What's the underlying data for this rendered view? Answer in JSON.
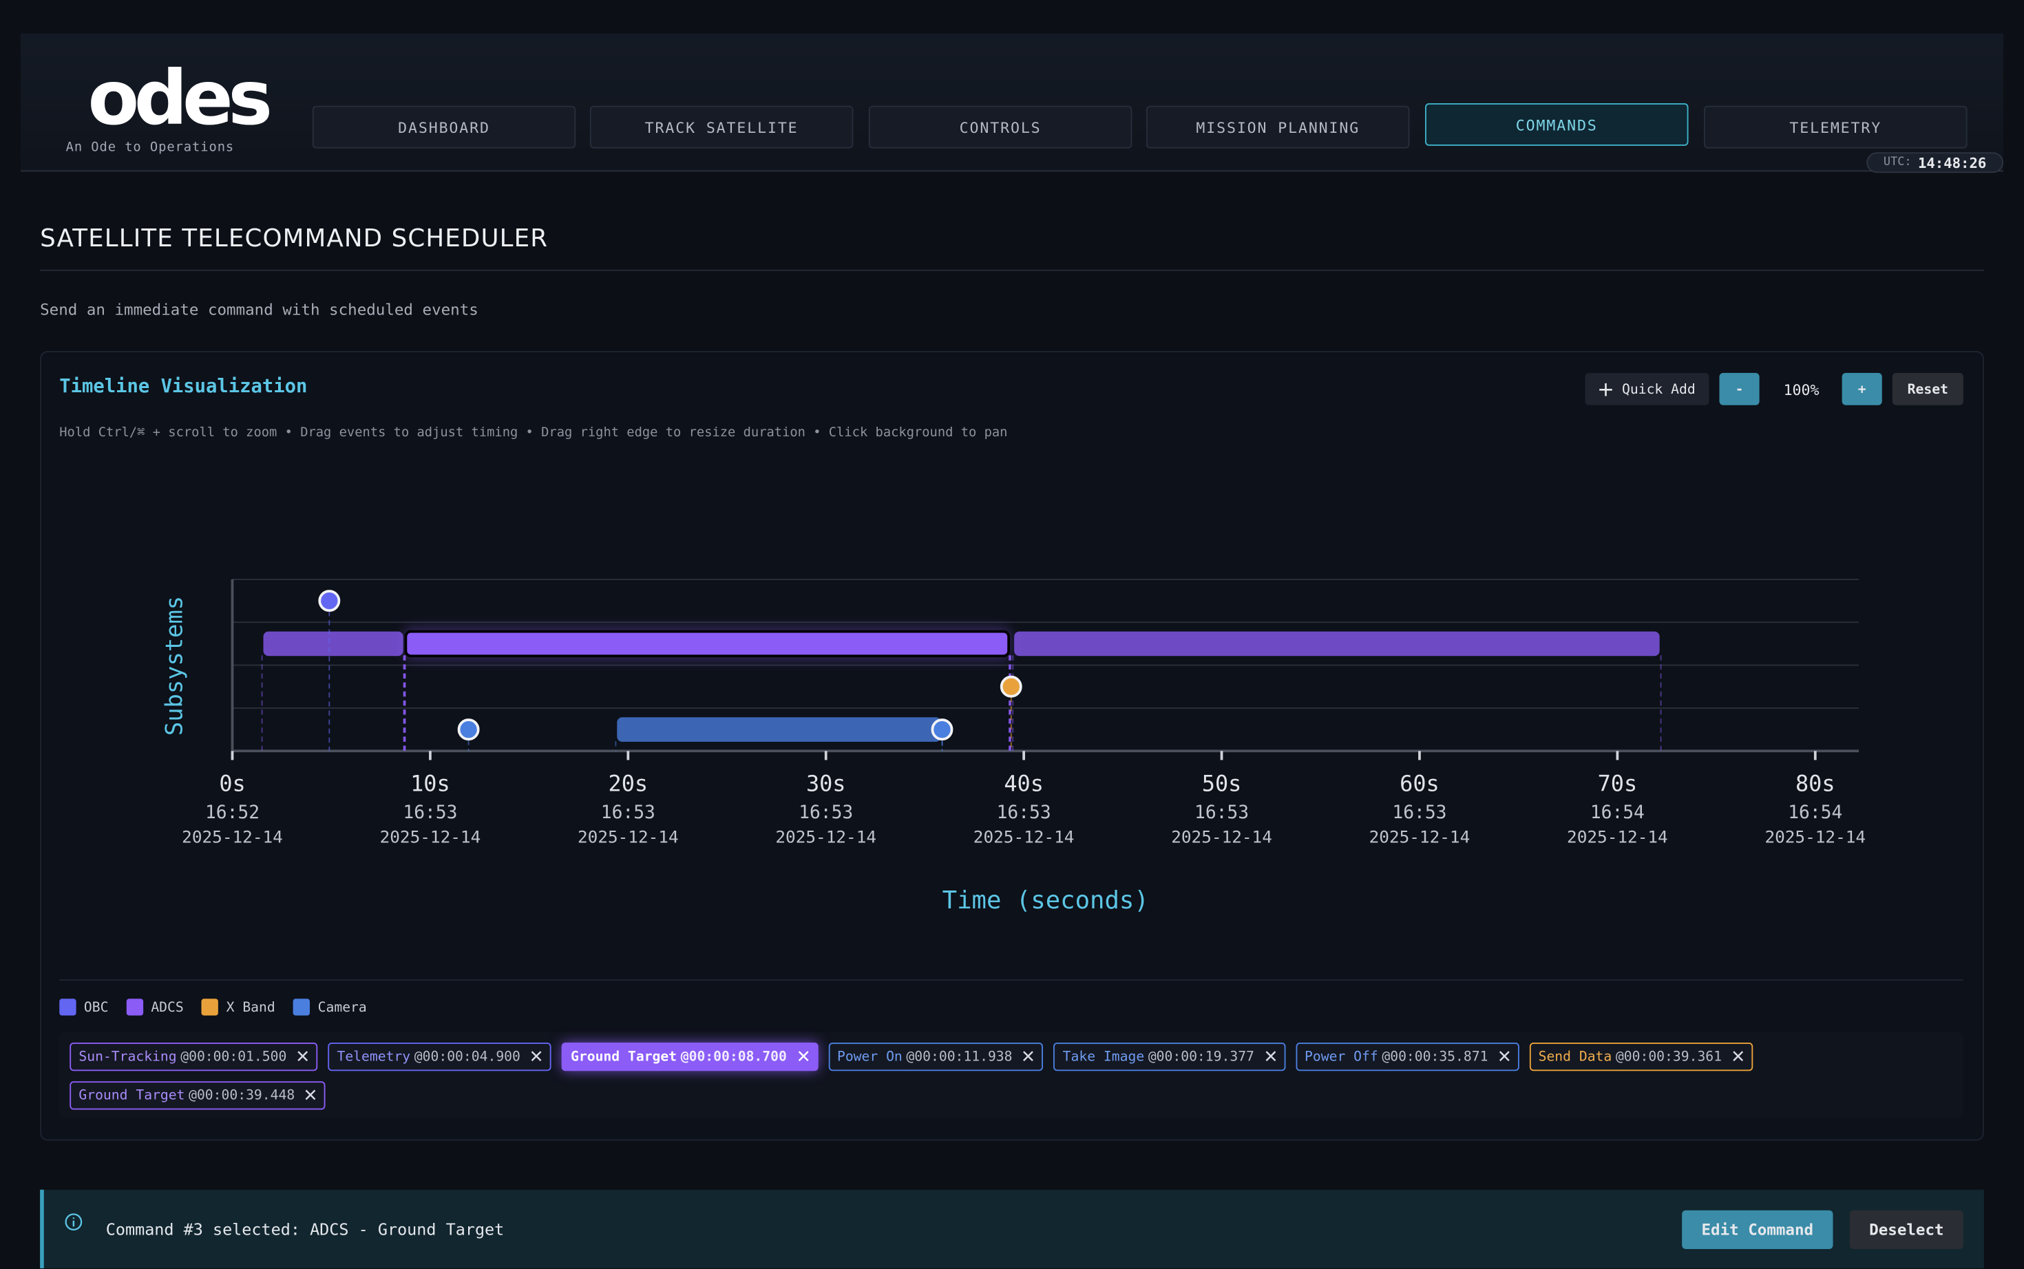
{
  "logo": {
    "text": "odes",
    "tagline": "An Ode to Operations"
  },
  "nav": [
    "DASHBOARD",
    "TRACK SATELLITE",
    "CONTROLS",
    "MISSION PLANNING",
    "COMMANDS",
    "TELEMETRY"
  ],
  "active_nav": 4,
  "utc": {
    "label": "UTC:",
    "time": "14:48:26"
  },
  "page": {
    "title": "SATELLITE TELECOMMAND SCHEDULER",
    "subtitle": "Send an immediate command with scheduled events"
  },
  "timeline": {
    "title": "Timeline Visualization",
    "quick_add": "Quick Add",
    "zoom_out": "-",
    "zoom": "100%",
    "zoom_in": "+",
    "reset": "Reset",
    "hint": "Hold Ctrl/⌘ + scroll to zoom • Drag events to adjust timing • Drag right edge to resize duration • Click background to pan",
    "y_label": "Subsystems",
    "x_label": "Time (seconds)",
    "xlim": [
      0,
      82.2
    ],
    "xticks": [
      {
        "value": 0,
        "label": "0s"
      },
      {
        "value": 10,
        "label": "10s"
      },
      {
        "value": 20,
        "label": "20s"
      },
      {
        "value": 30,
        "label": "30s"
      },
      {
        "value": 40,
        "label": "40s"
      },
      {
        "value": 50,
        "label": "50s"
      },
      {
        "value": 60,
        "label": "60s"
      },
      {
        "value": 70,
        "label": "70s"
      },
      {
        "value": 80,
        "label": "80s"
      }
    ],
    "tick_clock": [
      "16:52",
      "16:53",
      "16:53",
      "16:53",
      "16:53",
      "16:53",
      "16:53",
      "16:54",
      "16:54"
    ],
    "tick_date": [
      "2025-12-14",
      "2025-12-14",
      "2025-12-14",
      "2025-12-14",
      "2025-12-14",
      "2025-12-14",
      "2025-12-14",
      "2025-12-14",
      "2025-12-14"
    ],
    "subsystems": [
      {
        "name": "OBC",
        "color": "#6366f1",
        "text_color": "#8f93fa"
      },
      {
        "name": "ADCS",
        "color": "#8b5cf6",
        "text_color": "#a98cfb"
      },
      {
        "name": "X Band",
        "color": "#e9a23b",
        "text_color": "#f0ae4c"
      },
      {
        "name": "Camera",
        "color": "#4a7fe0",
        "text_color": "#6f9cf2"
      }
    ],
    "events": [
      {
        "name": "Sun-Tracking",
        "subsystem": 1,
        "start": 1.5,
        "duration": 7.2,
        "time_label": "@00:00:01.500"
      },
      {
        "name": "Telemetry",
        "subsystem": 0,
        "start": 4.9,
        "duration": null,
        "time_label": "@00:00:04.900"
      },
      {
        "name": "Ground Target",
        "subsystem": 1,
        "start": 8.7,
        "duration": 30.6,
        "time_label": "@00:00:08.700"
      },
      {
        "name": "Power On",
        "subsystem": 3,
        "start": 11.938,
        "duration": null,
        "time_label": "@00:00:11.938"
      },
      {
        "name": "Take Image",
        "subsystem": 3,
        "start": 19.377,
        "duration": 16.5,
        "time_label": "@00:00:19.377"
      },
      {
        "name": "Power Off",
        "subsystem": 3,
        "start": 35.871,
        "duration": null,
        "time_label": "@00:00:35.871"
      },
      {
        "name": "Send Data",
        "subsystem": 2,
        "start": 39.361,
        "duration": null,
        "time_label": "@00:00:39.361"
      },
      {
        "name": "Ground Target",
        "subsystem": 1,
        "start": 39.448,
        "duration": 32.75,
        "time_label": "@00:00:39.448"
      }
    ],
    "selected": 2
  },
  "status": {
    "message": "Command #3 selected: ADCS - Ground Target",
    "edit": "Edit Command",
    "deselect": "Deselect"
  }
}
